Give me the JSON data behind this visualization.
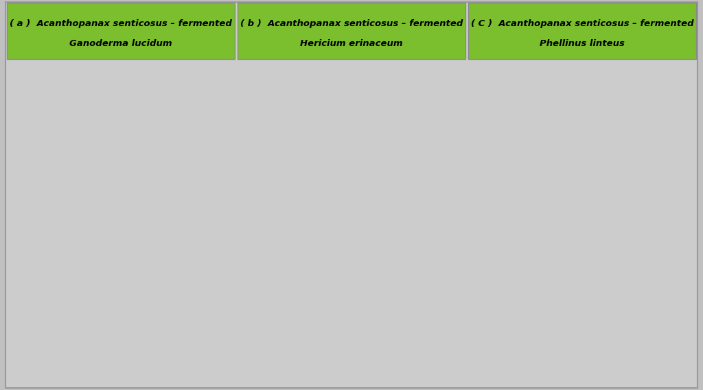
{
  "title_a_line1": "( a )  Acanthopanax senticosus – fermented",
  "title_a_line2": "Ganoderma lucidum",
  "title_b_line1": "( b )  Acanthopanax senticosus – fermented",
  "title_b_line2": "Hericium erinaceum",
  "title_c_line1": "( C )  Acanthopanax senticosus – fermented",
  "title_c_line2": "Phellinus linteus",
  "header_color": "#7bbf2e",
  "outer_border_color": "#aaaaaa",
  "inner_border_color": "#aaaaaa",
  "outer_bg": "#c0c0c0",
  "header_text_color": "#000000",
  "fig_width": 10.24,
  "fig_height": 5.68,
  "header_font_size": 9.5
}
